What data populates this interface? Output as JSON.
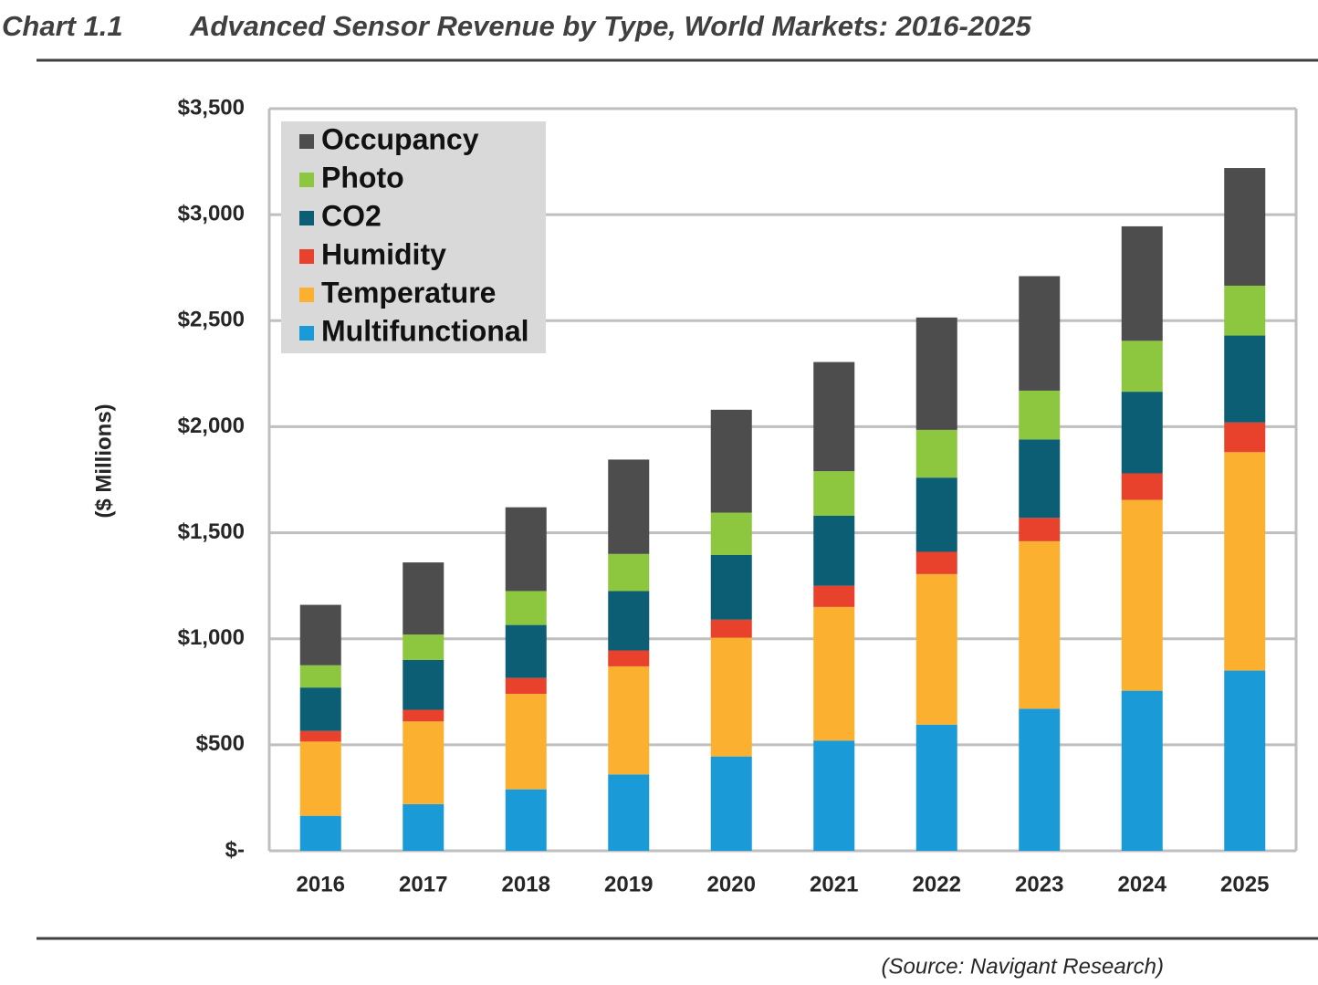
{
  "chart_data": {
    "type": "stacked_bar",
    "chart_label": "Chart 1.1",
    "title": "Advanced Sensor Revenue by Type, World Markets: 2016-2025",
    "y_label": "($ Millions)",
    "source": "(Source: Navigant Research)",
    "categories": [
      "2016",
      "2017",
      "2018",
      "2019",
      "2020",
      "2021",
      "2022",
      "2023",
      "2024",
      "2025"
    ],
    "series": [
      {
        "name": "Multifunctional",
        "color": "#1a9bd7",
        "values": [
          165,
          220,
          290,
          360,
          445,
          520,
          595,
          670,
          755,
          850
        ]
      },
      {
        "name": "Temperature",
        "color": "#fbb02f",
        "values": [
          350,
          390,
          450,
          510,
          560,
          630,
          710,
          790,
          900,
          1030
        ]
      },
      {
        "name": "Humidity",
        "color": "#e8412c",
        "values": [
          50,
          55,
          75,
          75,
          85,
          100,
          105,
          110,
          125,
          140
        ]
      },
      {
        "name": "CO2",
        "color": "#0b5e73",
        "values": [
          205,
          235,
          250,
          280,
          305,
          330,
          350,
          370,
          385,
          410
        ]
      },
      {
        "name": "Photo",
        "color": "#8dc63f",
        "values": [
          105,
          120,
          160,
          175,
          200,
          210,
          225,
          230,
          240,
          235
        ]
      },
      {
        "name": "Occupancy",
        "color": "#4d4d4d",
        "values": [
          285,
          340,
          395,
          445,
          485,
          515,
          530,
          540,
          540,
          555
        ]
      }
    ],
    "ylim": [
      0,
      3500
    ],
    "yticks": [
      {
        "value": 0,
        "label": "$-"
      },
      {
        "value": 500,
        "label": "$500"
      },
      {
        "value": 1000,
        "label": "$1,000"
      },
      {
        "value": 1500,
        "label": "$1,500"
      },
      {
        "value": 2000,
        "label": "$2,000"
      },
      {
        "value": 2500,
        "label": "$2,500"
      },
      {
        "value": 3000,
        "label": "$3,000"
      },
      {
        "value": 3500,
        "label": "$3,500"
      }
    ],
    "grid": true,
    "legend": "upper left"
  }
}
